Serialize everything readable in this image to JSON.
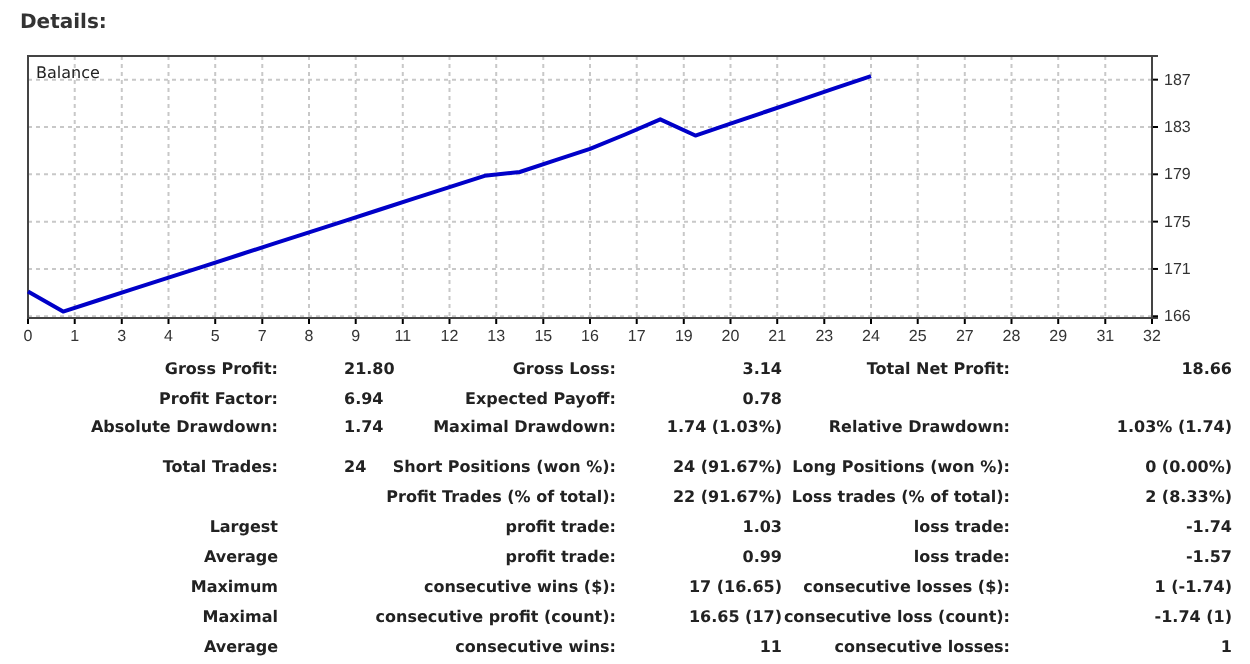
{
  "chart_data": [
    {
      "type": "line",
      "title": "Details:",
      "x": [
        0,
        1,
        2,
        3,
        4,
        5,
        6,
        7,
        8,
        9,
        10,
        11,
        12,
        13,
        14,
        15,
        16,
        17,
        18,
        19,
        20,
        21,
        22,
        23,
        24
      ],
      "series": [
        {
          "name": "Balance",
          "color": "#0000c8",
          "values": [
            168.6,
            166.86,
            167.84,
            168.82,
            169.8,
            170.78,
            171.76,
            172.74,
            173.72,
            174.7,
            175.68,
            176.66,
            177.64,
            178.62,
            178.95,
            179.95,
            180.95,
            182.2,
            183.51,
            182.11,
            183.14,
            184.17,
            185.2,
            186.23,
            187.26
          ]
        }
      ],
      "xlim": [
        0,
        32
      ],
      "xticks": [
        {
          "value": 0,
          "label": "0"
        },
        {
          "value": 1.33,
          "label": "1"
        },
        {
          "value": 2.67,
          "label": "3"
        },
        {
          "value": 4,
          "label": "4"
        },
        {
          "value": 5.33,
          "label": "5"
        },
        {
          "value": 6.67,
          "label": "7"
        },
        {
          "value": 8,
          "label": "8"
        },
        {
          "value": 9.33,
          "label": "9"
        },
        {
          "value": 10.67,
          "label": "11"
        },
        {
          "value": 12,
          "label": "12"
        },
        {
          "value": 13.33,
          "label": "13"
        },
        {
          "value": 14.67,
          "label": "15"
        },
        {
          "value": 16,
          "label": "16"
        },
        {
          "value": 17.33,
          "label": "17"
        },
        {
          "value": 18.67,
          "label": "19"
        },
        {
          "value": 20,
          "label": "20"
        },
        {
          "value": 21.33,
          "label": "21"
        },
        {
          "value": 22.67,
          "label": "23"
        },
        {
          "value": 24,
          "label": "24"
        },
        {
          "value": 25.33,
          "label": "25"
        },
        {
          "value": 26.67,
          "label": "27"
        },
        {
          "value": 28,
          "label": "28"
        },
        {
          "value": 29.33,
          "label": "29"
        },
        {
          "value": 30.67,
          "label": "31"
        },
        {
          "value": 32,
          "label": "32"
        }
      ],
      "ylim": [
        166.3,
        189.0
      ],
      "yticks": [
        {
          "value": 166.45,
          "label": "166"
        },
        {
          "value": 170.55,
          "label": "171"
        },
        {
          "value": 174.65,
          "label": "175"
        },
        {
          "value": 178.75,
          "label": "179"
        },
        {
          "value": 182.85,
          "label": "183"
        },
        {
          "value": 186.95,
          "label": "187"
        }
      ],
      "grid": true,
      "legend": "top left"
    },
    {
      "type": "other",
      "annotations": [
        "Gross Profit:",
        "21.80",
        "Gross Loss:",
        "3.14",
        "Total Net Profit:",
        "18.66",
        "Profit Factor:",
        "6.94",
        "Expected Payoff:",
        "0.78",
        "Absolute Drawdown:",
        "1.74",
        "Maximal Drawdown:",
        "1.74 (1.03%)",
        "Relative Drawdown:",
        "1.03% (1.74)",
        "Total Trades:",
        "24",
        "Short Positions (won %):",
        "24 (91.67%)",
        "Long Positions (won %):",
        "0 (0.00%)",
        "Profit Trades (% of total):",
        "22 (91.67%)",
        "Loss trades (% of total):",
        "2 (8.33%)",
        "Largest",
        "profit trade:",
        "1.03",
        "loss trade:",
        "-1.74",
        "Average",
        "profit trade:",
        "0.99",
        "loss trade:",
        "-1.57",
        "Maximum",
        "consecutive wins ($):",
        "17 (16.65)",
        "consecutive losses ($):",
        "1 (-1.74)",
        "Maximal",
        "consecutive profit (count):",
        "16.65 (17)",
        "consecutive loss (count):",
        "-1.74 (1)",
        "Average",
        "consecutive wins:",
        "11",
        "consecutive losses:",
        "1"
      ]
    }
  ]
}
